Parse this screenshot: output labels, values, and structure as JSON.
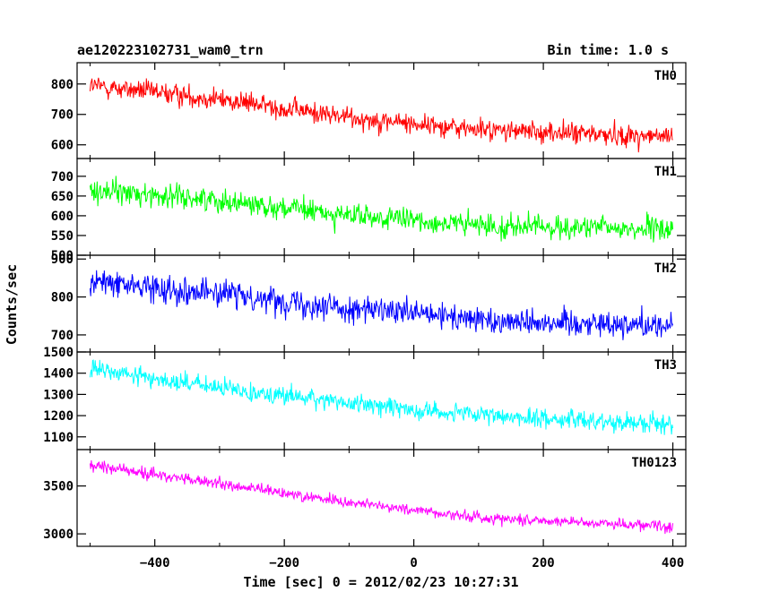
{
  "header": {
    "title": "ae120223102731_wam0_trn",
    "bin_time": "Bin time: 1.0 s"
  },
  "chart_data": {
    "type": "line",
    "title": "ae120223102731_wam0_trn",
    "subtitle": "Bin time: 1.0 s",
    "xlabel": "Time [sec] 0 = 2012/02/23 10:27:31",
    "ylabel": "Counts/sec",
    "xlim": [
      -520,
      420
    ],
    "x_ticks": [
      -400,
      -200,
      0,
      200,
      400
    ],
    "x_tick_labels": [
      "−400",
      "−200",
      "0",
      "200",
      "400"
    ],
    "x_range": [
      -500,
      400
    ],
    "grid": false,
    "panels": [
      {
        "name": "TH0",
        "color": "#ff0000",
        "ylim": [
          555,
          870
        ],
        "y_ticks": [
          600,
          700,
          800
        ],
        "trend_x": [
          -500,
          -300,
          -100,
          100,
          400
        ],
        "trend_y": [
          795,
          750,
          690,
          650,
          625
        ],
        "noise": 30
      },
      {
        "name": "TH1",
        "color": "#00ff00",
        "ylim": [
          500,
          745
        ],
        "y_ticks": [
          500,
          550,
          600,
          650,
          700
        ],
        "trend_x": [
          -500,
          -300,
          -100,
          100,
          400
        ],
        "trend_y": [
          665,
          640,
          600,
          575,
          565
        ],
        "noise": 25
      },
      {
        "name": "TH2",
        "color": "#0000ff",
        "ylim": [
          655,
          910
        ],
        "y_ticks": [
          700,
          800,
          900
        ],
        "trend_x": [
          -500,
          -300,
          -100,
          100,
          400
        ],
        "trend_y": [
          840,
          810,
          770,
          740,
          725
        ],
        "noise": 30
      },
      {
        "name": "TH3",
        "color": "#00ffff",
        "ylim": [
          1040,
          1500
        ],
        "y_ticks": [
          1100,
          1200,
          1300,
          1400,
          1500
        ],
        "trend_x": [
          -500,
          -300,
          -100,
          100,
          400
        ],
        "trend_y": [
          1420,
          1330,
          1260,
          1200,
          1160
        ],
        "noise": 38
      },
      {
        "name": "TH0123",
        "color": "#ff00ff",
        "ylim": [
          2870,
          3880
        ],
        "y_ticks": [
          3000,
          3500
        ],
        "trend_x": [
          -500,
          -300,
          -100,
          100,
          400
        ],
        "trend_y": [
          3720,
          3520,
          3330,
          3170,
          3080
        ],
        "noise": 50
      }
    ]
  }
}
